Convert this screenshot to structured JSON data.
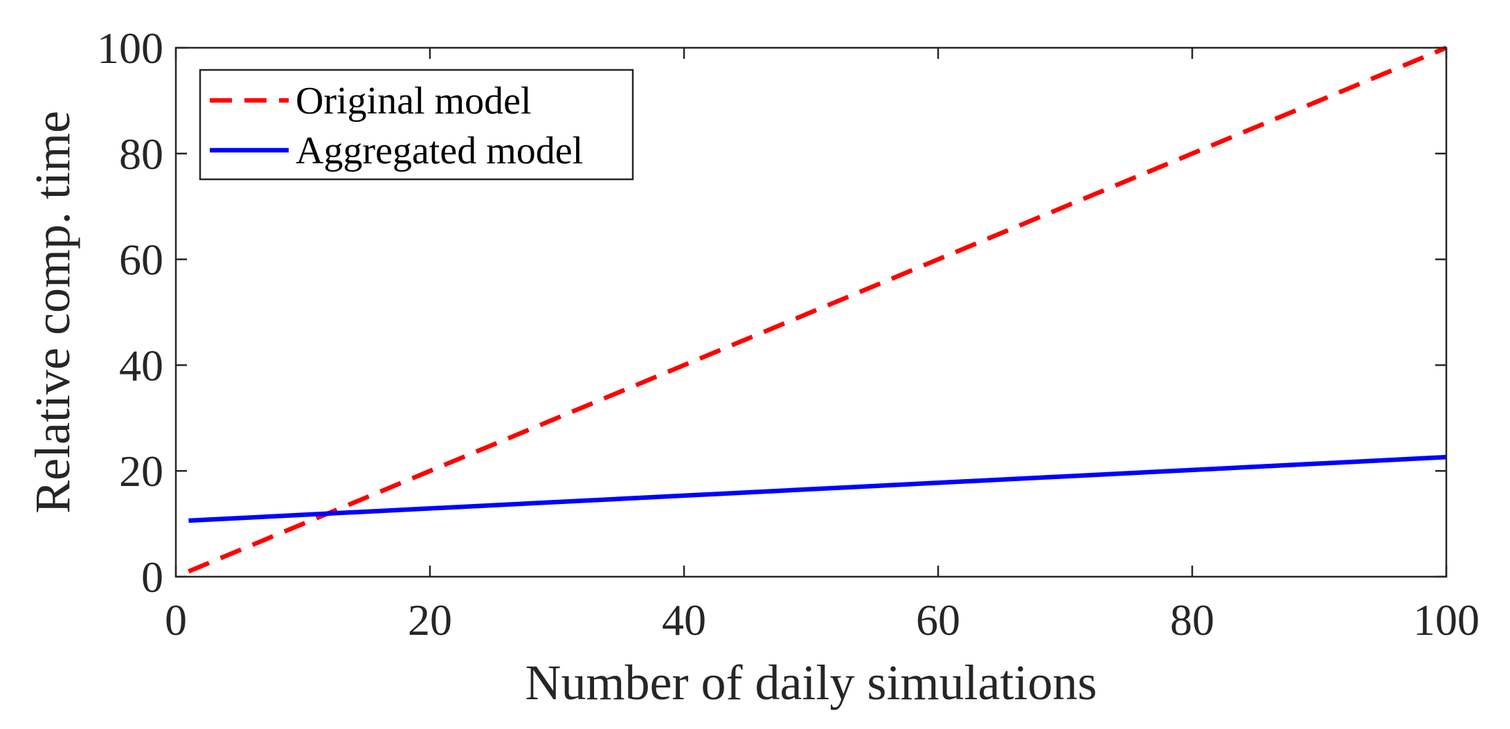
{
  "chart_data": {
    "type": "line",
    "title": "",
    "xlabel": "Number of daily simulations",
    "ylabel": "Relative comp. time",
    "xlim": [
      0,
      100
    ],
    "ylim": [
      0,
      100
    ],
    "xticks": [
      0,
      20,
      40,
      60,
      80,
      100
    ],
    "yticks": [
      0,
      20,
      40,
      60,
      80,
      100
    ],
    "xtick_labels": [
      "0",
      "20",
      "40",
      "60",
      "80",
      "100"
    ],
    "ytick_labels": [
      "0",
      "20",
      "40",
      "60",
      "80",
      "100"
    ],
    "grid": false,
    "legend_position": "top-left",
    "series": [
      {
        "name": "Original model",
        "color": "#ff0000",
        "style": "dashed",
        "x": [
          1,
          100
        ],
        "y": [
          1,
          100
        ]
      },
      {
        "name": "Aggregated model",
        "color": "#0000ff",
        "style": "solid",
        "x": [
          1,
          100
        ],
        "y": [
          10.6,
          22.6
        ]
      }
    ]
  }
}
